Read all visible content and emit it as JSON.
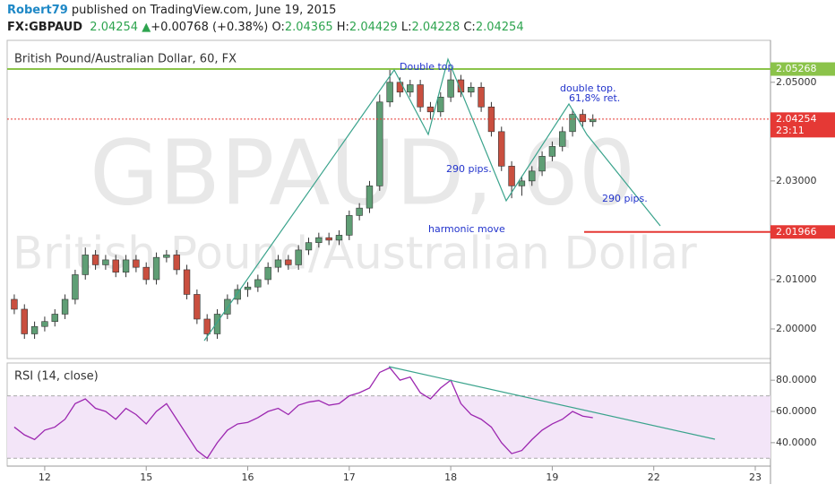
{
  "header": {
    "author": "Robert79",
    "published": "published on TradingView.com, June 19, 2015",
    "symbol": "FX:GBPAUD",
    "last": "2.04254",
    "change": "+0.00768 (+0.38%)",
    "ohlc": [
      {
        "label": "O:",
        "value": "2.04365"
      },
      {
        "label": "H:",
        "value": "2.04429"
      },
      {
        "label": "L:",
        "value": "2.04228"
      },
      {
        "label": "C:",
        "value": "2.04254"
      }
    ]
  },
  "chart_data": [
    {
      "type": "candlestick",
      "title": "British Pound/Australian Dollar, 60, FX",
      "watermark": [
        "GBPAUD, 60",
        "British Pound/Australian Dollar"
      ],
      "annotations": [
        "Double top",
        "double top.",
        "61,8% ret.",
        "290 pips.",
        "290 pips.",
        "harmonic move"
      ],
      "up_color": "#5f9e75",
      "down_color": "#c94f3f",
      "x": [
        -0.3,
        -0.2,
        -0.1,
        0,
        0.1,
        0.2,
        0.3,
        0.4,
        0.5,
        0.6,
        0.7,
        0.8,
        0.9,
        1,
        1.1,
        1.2,
        1.3,
        1.4,
        1.5,
        1.6,
        1.7,
        1.8,
        1.9,
        2,
        2.1,
        2.2,
        2.3,
        2.4,
        2.5,
        2.6,
        2.7,
        2.8,
        2.9,
        3,
        3.1,
        3.2,
        3.3,
        3.4,
        3.5,
        3.6,
        3.7,
        3.8,
        3.9,
        4,
        4.1,
        4.2,
        4.3,
        4.4,
        4.5,
        4.6,
        4.7,
        4.8,
        4.9,
        5,
        5.1,
        5.2,
        5.3,
        5.4
      ],
      "open": [
        2.006,
        2.004,
        1.999,
        2.0005,
        2.0015,
        2.003,
        2.006,
        2.011,
        2.015,
        2.013,
        2.014,
        2.0115,
        2.014,
        2.0125,
        2.01,
        2.0145,
        2.015,
        2.012,
        2.007,
        2.002,
        1.999,
        2.003,
        2.006,
        2.008,
        2.0085,
        2.01,
        2.0125,
        2.014,
        2.013,
        2.016,
        2.0175,
        2.0185,
        2.018,
        2.019,
        2.023,
        2.0245,
        2.029,
        2.046,
        2.05,
        2.048,
        2.0495,
        2.045,
        2.044,
        2.047,
        2.0505,
        2.048,
        2.049,
        2.045,
        2.04,
        2.033,
        2.029,
        2.03,
        2.032,
        2.035,
        2.037,
        2.04,
        2.0435,
        2.042
      ],
      "high": [
        2.007,
        2.005,
        2.0015,
        2.0025,
        2.004,
        2.007,
        2.012,
        2.0165,
        2.016,
        2.015,
        2.015,
        2.015,
        2.015,
        2.0135,
        2.0155,
        2.016,
        2.016,
        2.013,
        2.008,
        2.003,
        2.004,
        2.007,
        2.009,
        2.0095,
        2.011,
        2.0135,
        2.015,
        2.015,
        2.017,
        2.0185,
        2.0195,
        2.0195,
        2.02,
        2.024,
        2.0255,
        2.03,
        2.0475,
        2.0527,
        2.051,
        2.0505,
        2.0505,
        2.046,
        2.048,
        2.0527,
        2.0515,
        2.05,
        2.05,
        2.046,
        2.041,
        2.034,
        2.031,
        2.033,
        2.036,
        2.038,
        2.041,
        2.0445,
        2.0445,
        2.0435
      ],
      "low": [
        2.003,
        1.998,
        1.998,
        1.9995,
        2.0005,
        2.002,
        2.005,
        2.01,
        2.012,
        2.012,
        2.0105,
        2.0105,
        2.0115,
        2.009,
        2.009,
        2.0135,
        2.011,
        2.006,
        2.001,
        1.9975,
        1.998,
        2.002,
        2.005,
        2.0065,
        2.0075,
        2.009,
        2.0115,
        2.012,
        2.012,
        2.015,
        2.0165,
        2.017,
        2.017,
        2.018,
        2.022,
        2.0235,
        2.028,
        2.045,
        2.047,
        2.047,
        2.044,
        2.0425,
        2.043,
        2.046,
        2.047,
        2.047,
        2.044,
        2.039,
        2.032,
        2.0265,
        2.027,
        2.029,
        2.031,
        2.034,
        2.036,
        2.039,
        2.041,
        2.041
      ],
      "close": [
        2.004,
        1.999,
        2.0005,
        2.0015,
        2.003,
        2.006,
        2.011,
        2.015,
        2.013,
        2.014,
        2.0115,
        2.014,
        2.0125,
        2.01,
        2.0145,
        2.015,
        2.012,
        2.007,
        2.002,
        1.999,
        2.003,
        2.006,
        2.008,
        2.0085,
        2.01,
        2.0125,
        2.014,
        2.013,
        2.016,
        2.0175,
        2.0185,
        2.018,
        2.019,
        2.023,
        2.0245,
        2.029,
        2.046,
        2.05,
        2.048,
        2.0495,
        2.045,
        2.044,
        2.047,
        2.0505,
        2.048,
        2.049,
        2.045,
        2.04,
        2.033,
        2.029,
        2.03,
        2.032,
        2.035,
        2.037,
        2.04,
        2.0435,
        2.042,
        2.0425
      ],
      "xlim": [
        -0.37,
        7.15
      ],
      "xticks": [
        {
          "value": 0,
          "label": "12"
        },
        {
          "value": 1,
          "label": "15"
        },
        {
          "value": 2,
          "label": "16"
        },
        {
          "value": 3,
          "label": "17"
        },
        {
          "value": 4,
          "label": "18"
        },
        {
          "value": 5,
          "label": "19"
        },
        {
          "value": 6,
          "label": "22"
        },
        {
          "value": 7,
          "label": "23"
        }
      ],
      "ylim": [
        1.994,
        2.0585
      ],
      "yticks": [
        {
          "value": 2,
          "label": "2.00000"
        },
        {
          "value": 2.01,
          "label": "2.01000"
        },
        {
          "value": 2.03,
          "label": "2.03000"
        },
        {
          "value": 2.05,
          "label": "2.05000"
        }
      ],
      "hlines": [
        {
          "value": 2.05268,
          "color": "#8bc34a"
        },
        {
          "value": 2.04254,
          "color": "#e53935"
        },
        {
          "value": 2.01966,
          "color": "#e53935"
        }
      ],
      "countdown": "23:11"
    },
    {
      "type": "line",
      "title": "RSI (14, close)",
      "color": "#9c27b0",
      "band": [
        30,
        70
      ],
      "x": [
        -0.3,
        -0.2,
        -0.1,
        0,
        0.1,
        0.2,
        0.3,
        0.4,
        0.5,
        0.6,
        0.7,
        0.8,
        0.9,
        1,
        1.1,
        1.2,
        1.3,
        1.4,
        1.5,
        1.6,
        1.7,
        1.8,
        1.9,
        2,
        2.1,
        2.2,
        2.3,
        2.4,
        2.5,
        2.6,
        2.7,
        2.8,
        2.9,
        3,
        3.1,
        3.2,
        3.3,
        3.4,
        3.5,
        3.6,
        3.7,
        3.8,
        3.9,
        4,
        4.1,
        4.2,
        4.3,
        4.4,
        4.5,
        4.6,
        4.7,
        4.8,
        4.9,
        5,
        5.1,
        5.2,
        5.3,
        5.4
      ],
      "values": [
        50,
        45,
        42,
        48,
        50,
        55,
        65,
        68,
        62,
        60,
        55,
        62,
        58,
        52,
        60,
        65,
        55,
        45,
        35,
        30,
        40,
        48,
        52,
        53,
        56,
        60,
        62,
        58,
        64,
        66,
        67,
        64,
        65,
        70,
        72,
        75,
        85,
        88,
        80,
        82,
        72,
        68,
        75,
        80,
        65,
        58,
        55,
        50,
        40,
        33,
        35,
        42,
        48,
        52,
        55,
        60,
        57,
        56
      ],
      "xlim": [
        -0.37,
        7.15
      ],
      "ylim": [
        25,
        91
      ],
      "yticks": [
        {
          "value": 40,
          "label": "40.0000"
        },
        {
          "value": 60,
          "label": "60.0000"
        },
        {
          "value": 80,
          "label": "80.0000"
        }
      ]
    }
  ]
}
